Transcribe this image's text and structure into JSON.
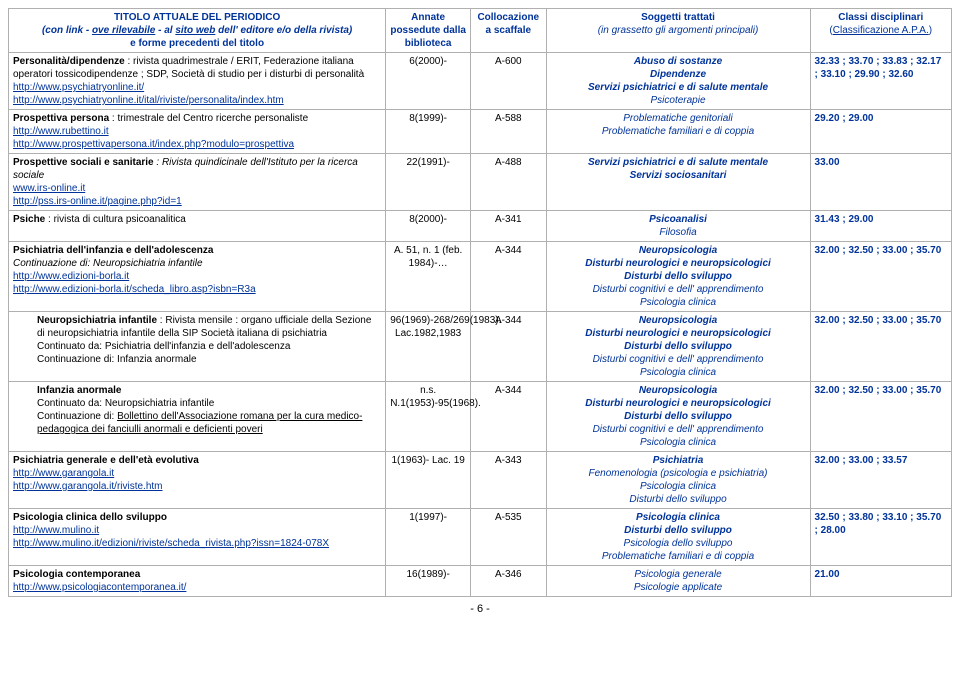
{
  "header": {
    "col1_line1": "TITOLO ATTUALE DEL PERIODICO",
    "col1_line2a": "(con link - ",
    "col1_line2b": "ove rilevabile",
    "col1_line2c": " - al ",
    "col1_line2d": "sito web",
    "col1_line2e": " dell' editore e/o della rivista)",
    "col1_line3": "e forme precedenti del titolo",
    "col2": "Annate possedute dalla biblioteca",
    "col3": "Collocazione a scaffale",
    "col4_line1": "Soggetti trattati",
    "col4_line2": "(in grassetto gli argomenti principali)",
    "col5_line1": "Classi disciplinari",
    "col5_line2_open": "(",
    "col5_line2_link": "Classificazione A.P.A.",
    "col5_line2_close": ")"
  },
  "rows": [
    {
      "title_bold": "Personalità/dipendenze",
      "title_rest": " : rivista quadrimestrale / ERIT, Federazione italiana operatori tossicodipendenze ; SDP, Società di studio per i disturbi di personalità",
      "links": [
        "http://www.psychiatryonline.it/",
        "http://www.psychiatryonline.it/ital/riviste/personalita/index.htm"
      ],
      "annate": "6(2000)-",
      "coll": "A-600",
      "sogg": [
        {
          "t": "Abuso di sostanze",
          "b": true
        },
        {
          "t": "Dipendenze",
          "b": true
        },
        {
          "t": "Servizi psichiatrici e di salute mentale",
          "b": true
        },
        {
          "t": "Psicoterapie",
          "b": false
        }
      ],
      "classi": "32.33 ; 33.70 ; 33.83 ; 32.17 ; 33.10 ; 29.90 ; 32.60"
    },
    {
      "title_bold": "Prospettiva persona",
      "title_rest": " : trimestrale del Centro ricerche personaliste",
      "links": [
        "http://www.rubettino.it",
        "http://www.prospettivapersona.it/index.php?modulo=prospettiva"
      ],
      "annate": "8(1999)-",
      "coll": "A-588",
      "sogg": [
        {
          "t": "Problematiche genitoriali",
          "b": false
        },
        {
          "t": "Problematiche familiari e di coppia",
          "b": false
        }
      ],
      "classi": "29.20 ; 29.00"
    },
    {
      "title_bold": "Prospettive sociali e sanitarie",
      "title_rest_ital": " : Rivista quindicinale dell'Istituto per la ricerca sociale",
      "links": [
        "www.irs-online.it",
        "http://pss.irs-online.it/pagine.php?id=1"
      ],
      "annate": "22(1991)-",
      "coll": "A-488",
      "sogg": [
        {
          "t": "Servizi psichiatrici e di salute mentale",
          "b": true
        },
        {
          "t": "Servizi sociosanitari",
          "b": true
        }
      ],
      "classi": "33.00"
    },
    {
      "title_bold": "Psiche",
      "title_rest": " : rivista di cultura psicoanalitica",
      "annate": "8(2000)-",
      "coll": "A-341",
      "sogg": [
        {
          "t": "Psicoanalisi",
          "b": true
        },
        {
          "t": "Filosofia",
          "b": false
        }
      ],
      "classi": "31.43 ; 29.00"
    },
    {
      "title_bold": "Psichiatria dell'infanzia e dell'adolescenza",
      "title_sub_ital": "Continuazione di: Neuropsichiatria infantile",
      "links": [
        "http://www.edizioni-borla.it",
        "http://www.edizioni-borla.it/scheda_libro.asp?isbn=R3a"
      ],
      "annate": "A. 51, n. 1 (feb. 1984)-…",
      "coll": "A-344",
      "sogg": [
        {
          "t": "Neuropsicologia",
          "b": true
        },
        {
          "t": "Disturbi neurologici e neuropsicologici",
          "b": true
        },
        {
          "t": "Disturbi dello sviluppo",
          "b": true
        },
        {
          "t": "Disturbi cognitivi e dell' apprendimento",
          "b": false
        },
        {
          "t": "Psicologia clinica",
          "b": false
        }
      ],
      "classi": "32.00 ; 32.50 ; 33.00 ; 35.70"
    },
    {
      "inset": true,
      "title_bold": "Neuropsichiatria infantile",
      "title_rest": " : Rivista mensile : organo ufficiale della Sezione di neuropsichiatria infantile della SIP Società italiana di psichiatria",
      "title_sub_lines": [
        "Continuato da: Psichiatria dell'infanzia e dell'adolescenza",
        "Continuazione di: Infanzia anormale"
      ],
      "annate": "96(1969)-268/269(1983). Lac.1982,1983",
      "coll": "A-344",
      "sogg": [
        {
          "t": "Neuropsicologia",
          "b": true
        },
        {
          "t": "Disturbi neurologici e neuropsicologici",
          "b": true
        },
        {
          "t": "Disturbi dello sviluppo",
          "b": true
        },
        {
          "t": "Disturbi cognitivi e dell' apprendimento",
          "b": false
        },
        {
          "t": "Psicologia clinica",
          "b": false
        }
      ],
      "classi": "32.00 ; 32.50 ; 33.00 ; 35.70"
    },
    {
      "inset": true,
      "title_bold": "Infanzia anormale",
      "title_sub_lines": [
        "Continuato da: Neuropsichiatria infantile"
      ],
      "title_sub_long": "Continuazione di: Bollettino dell'Associazione romana per la cura medico-pedagogica dei fanciulli anormali e deficienti poveri",
      "annate": "n.s. N.1(1953)-95(1968).",
      "coll": "A-344",
      "sogg": [
        {
          "t": "Neuropsicologia",
          "b": true
        },
        {
          "t": "Disturbi neurologici e neuropsicologici",
          "b": true
        },
        {
          "t": "Disturbi dello sviluppo",
          "b": true
        },
        {
          "t": "Disturbi cognitivi e dell' apprendimento",
          "b": false
        },
        {
          "t": "Psicologia clinica",
          "b": false
        }
      ],
      "classi": "32.00 ; 32.50 ; 33.00 ; 35.70"
    },
    {
      "title_bold": "Psichiatria generale e dell'età evolutiva",
      "links": [
        "http://www.garangola.it",
        "http://www.garangola.it/riviste.htm"
      ],
      "annate": "1(1963)- Lac. 19",
      "coll": "A-343",
      "sogg": [
        {
          "t": "Psichiatria",
          "b": true
        },
        {
          "t": "Fenomenologia (psicologia e psichiatria)",
          "b": false
        },
        {
          "t": "Psicologia clinica",
          "b": false
        },
        {
          "t": "Disturbi dello sviluppo",
          "b": false
        }
      ],
      "classi": "32.00 ; 33.00 ; 33.57"
    },
    {
      "title_bold": "Psicologia clinica dello sviluppo",
      "links": [
        "http://www.mulino.it",
        "http://www.mulino.it/edizioni/riviste/scheda_rivista.php?issn=1824-078X"
      ],
      "annate": "1(1997)-",
      "coll": "A-535",
      "sogg": [
        {
          "t": "Psicologia clinica",
          "b": true
        },
        {
          "t": "Disturbi dello sviluppo",
          "b": true
        },
        {
          "t": "Psicologia dello sviluppo",
          "b": false
        },
        {
          "t": "Problematiche familiari e di coppia",
          "b": false
        }
      ],
      "classi": "32.50 ; 33.80 ; 33.10 ; 35.70 ; 28.00"
    },
    {
      "title_bold": "Psicologia contemporanea",
      "links": [
        "http://www.psicologiacontemporanea.it/"
      ],
      "annate": "16(1989)-",
      "coll": "A-346",
      "sogg": [
        {
          "t": "Psicologia generale",
          "b": false
        },
        {
          "t": "Psicologie applicate",
          "b": false
        }
      ],
      "classi": "21.00"
    }
  ],
  "page": "- 6 -"
}
